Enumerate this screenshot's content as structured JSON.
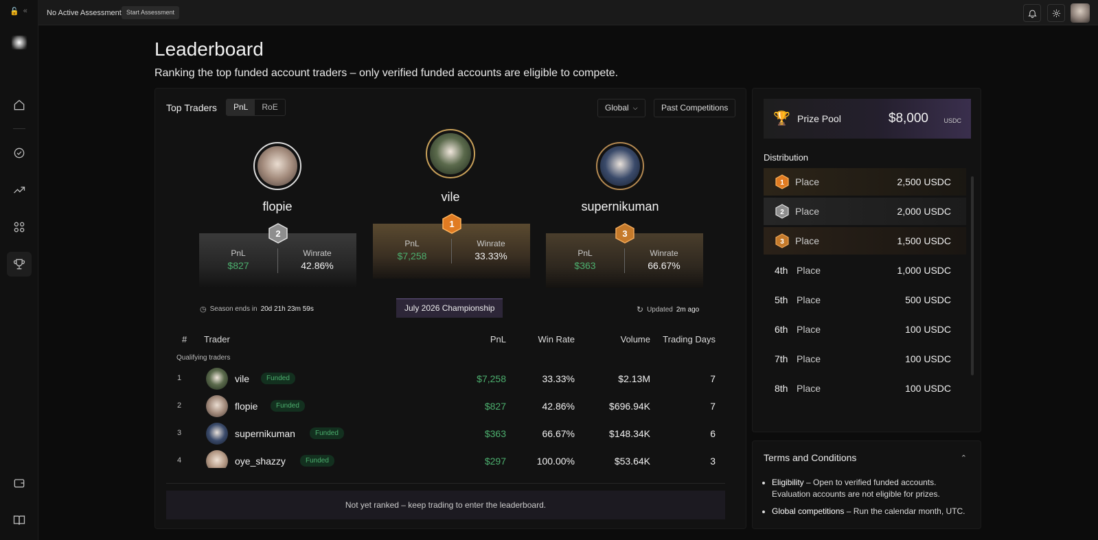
{
  "topbar": {
    "status": "No Active Assessment",
    "start_button": "Start Assessment"
  },
  "header": {
    "title": "Leaderboard",
    "subtitle": "Ranking the top funded account traders – only verified funded accounts are eligible to compete."
  },
  "board": {
    "title": "Top Traders",
    "tabs": [
      {
        "label": "PnL"
      },
      {
        "label": "RoE"
      }
    ],
    "scope": "Global",
    "past_button": "Past Competitions"
  },
  "podium": [
    {
      "rank": "2",
      "name": "flopie",
      "pnl_label": "PnL",
      "pnl": "$827",
      "winrate_label": "Winrate",
      "winrate": "42.86%"
    },
    {
      "rank": "1",
      "name": "vile",
      "pnl_label": "PnL",
      "pnl": "$7,258",
      "winrate_label": "Winrate",
      "winrate": "33.33%"
    },
    {
      "rank": "3",
      "name": "supernikuman",
      "pnl_label": "PnL",
      "pnl": "$363",
      "winrate_label": "Winrate",
      "winrate": "66.67%"
    }
  ],
  "season": {
    "label": "Season ends in",
    "value": "20d 21h 23m 59s"
  },
  "championship": "July 2026 Championship",
  "updated": {
    "label": "Updated",
    "value": "2m ago"
  },
  "table": {
    "columns": {
      "rank": "#",
      "trader": "Trader",
      "pnl": "PnL",
      "win_rate": "Win Rate",
      "volume": "Volume",
      "days": "Trading Days"
    },
    "section": "Qualifying traders",
    "rows": [
      {
        "rank": "1",
        "name": "vile",
        "badge": "Funded",
        "pnl": "$7,258",
        "win_rate": "33.33%",
        "volume": "$2.13M",
        "days": "7"
      },
      {
        "rank": "2",
        "name": "flopie",
        "badge": "Funded",
        "pnl": "$827",
        "win_rate": "42.86%",
        "volume": "$696.94K",
        "days": "7"
      },
      {
        "rank": "3",
        "name": "supernikuman",
        "badge": "Funded",
        "pnl": "$363",
        "win_rate": "66.67%",
        "volume": "$148.34K",
        "days": "6"
      },
      {
        "rank": "4",
        "name": "oye_shazzy",
        "badge": "Funded",
        "pnl": "$297",
        "win_rate": "100.00%",
        "volume": "$53.64K",
        "days": "3"
      }
    ],
    "footer": "Not yet ranked – keep trading to enter the leaderboard."
  },
  "prize": {
    "label": "Prize Pool",
    "amount": "$8,000",
    "currency": "USDC"
  },
  "distribution": {
    "title": "Distribution",
    "places": [
      {
        "ord": "1",
        "label": "Place",
        "amount": "2,500 USDC"
      },
      {
        "ord": "2",
        "label": "Place",
        "amount": "2,000 USDC"
      },
      {
        "ord": "3",
        "label": "Place",
        "amount": "1,500 USDC"
      },
      {
        "ord": "4th",
        "label": "Place",
        "amount": "1,000 USDC"
      },
      {
        "ord": "5th",
        "label": "Place",
        "amount": "500 USDC"
      },
      {
        "ord": "6th",
        "label": "Place",
        "amount": "100 USDC"
      },
      {
        "ord": "7th",
        "label": "Place",
        "amount": "100 USDC"
      },
      {
        "ord": "8th",
        "label": "Place",
        "amount": "100 USDC"
      }
    ]
  },
  "terms": {
    "title": "Terms and Conditions",
    "items": [
      {
        "head": "Eligibility",
        "text": " – Open to verified funded accounts. Evaluation accounts are not eligible for prizes."
      },
      {
        "head": "Global competitions",
        "text": " – Run the calendar month, UTC."
      }
    ]
  },
  "colors": {
    "green": "#4caf6e",
    "gold": "#e07b22",
    "silver": "#9a9a9a",
    "bronze": "#c57a2b"
  },
  "icons": [
    "lock-icon",
    "collapse-icon",
    "home-icon",
    "badge-check-icon",
    "trending-up-icon",
    "grid-icon",
    "trophy-icon",
    "wallet-icon",
    "book-icon",
    "bell-icon",
    "gear-icon",
    "clock-icon",
    "refresh-icon",
    "chevron-down-icon",
    "chevron-up-icon"
  ]
}
